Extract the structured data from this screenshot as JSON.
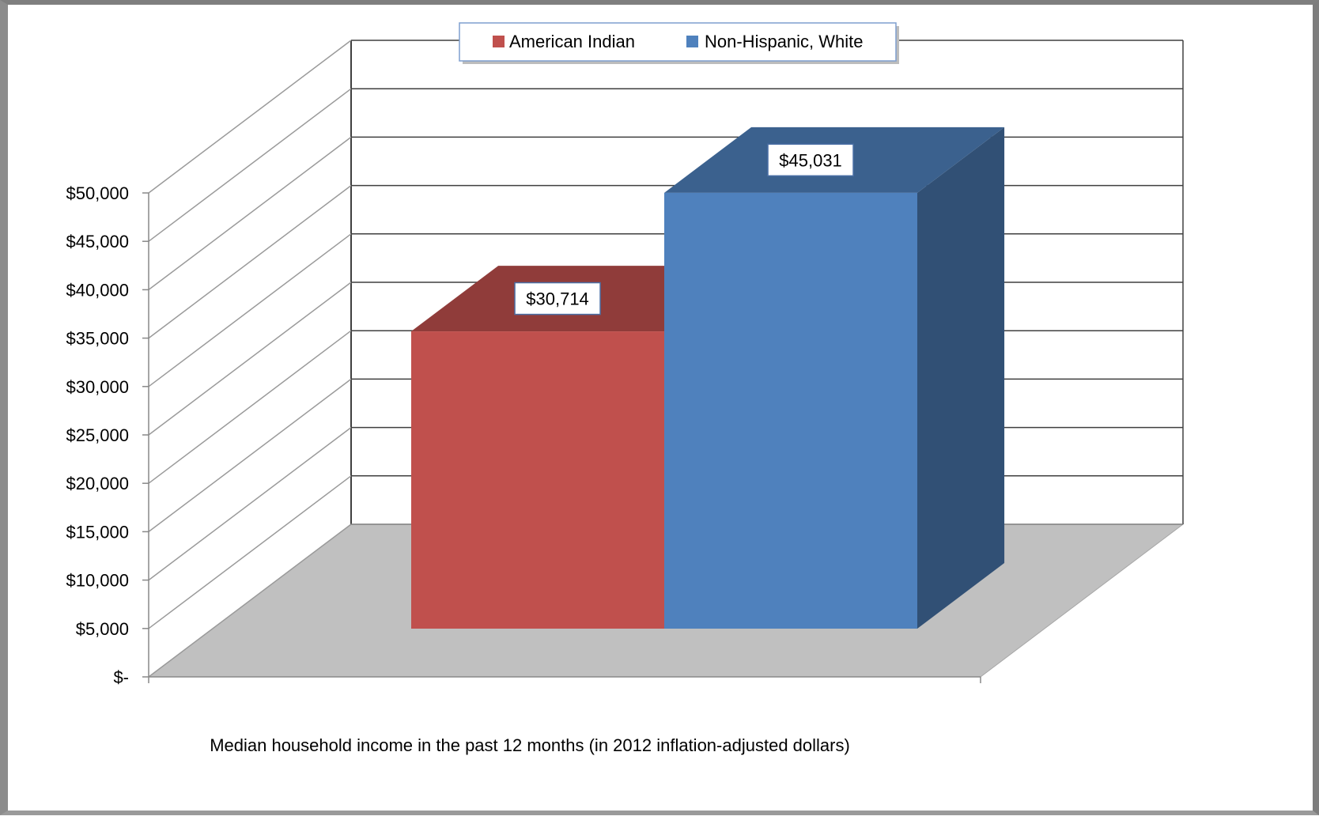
{
  "chart_data": {
    "type": "bar",
    "categories": [
      "Median household income in the past 12 months (in 2012 inflation-adjusted dollars)"
    ],
    "series": [
      {
        "name": "American Indian",
        "values": [
          30714
        ],
        "color": "#C0504D",
        "label": "$30,714"
      },
      {
        "name": "Non-Hispanic, White",
        "values": [
          45031
        ],
        "color": "#4F81BD",
        "label": "$45,031"
      }
    ],
    "title": "",
    "xlabel": "Median household income in the past 12 months (in 2012 inflation-adjusted dollars)",
    "ylabel": "",
    "ylim": [
      0,
      50000
    ],
    "yticks": [
      0,
      5000,
      10000,
      15000,
      20000,
      25000,
      30000,
      35000,
      40000,
      45000,
      50000
    ],
    "ytick_labels": [
      "$-",
      "$5,000",
      "$10,000",
      "$15,000",
      "$20,000",
      "$25,000",
      "$30,000",
      "$35,000",
      "$40,000",
      "$45,000",
      "$50,000"
    ],
    "style": "3d-clustered-column",
    "grid": true,
    "legend_position": "top-center",
    "floor_color": "#C0C0C0"
  }
}
